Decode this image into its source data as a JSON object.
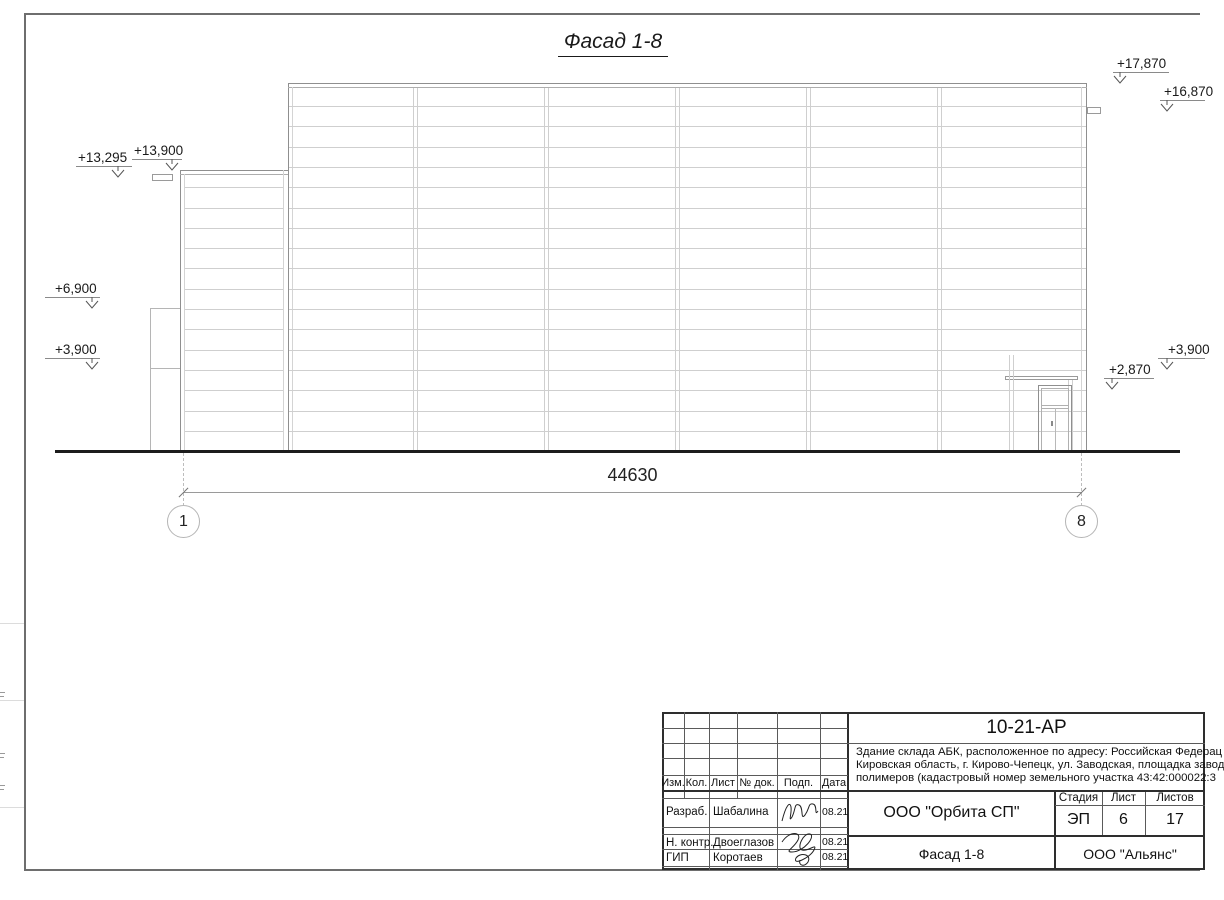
{
  "drawing": {
    "title": "Фасад 1-8",
    "total_dimension": "44630",
    "axis_left": "1",
    "axis_right": "8",
    "marks": {
      "m13295": "+13,295",
      "m13900": "+13,900",
      "m6900": "+6,900",
      "m3900l": "+3,900",
      "m17870": "+17,870",
      "m16870": "+16,870",
      "m3900r": "+3,900",
      "m2870": "+2,870"
    }
  },
  "title_block": {
    "doc_number": "10-21-АР",
    "description": [
      "Здание склада АБК, расположенное по адресу: Российская Федерац",
      "Кировская область, г. Кирово-Чепецк, ул. Заводская, площадка завод",
      "полимеров (кадастровый номер земельного участка 43:42:000022:3"
    ],
    "columns_header": [
      "Изм.",
      "Кол.",
      "Лист",
      "№ док.",
      "Подп.",
      "Дата"
    ],
    "sign_rows": [
      {
        "role": "Разраб.",
        "name": "Шабалина",
        "date": "08.21"
      },
      {
        "role": "Н. контр.",
        "name": "Двоеглазов",
        "date": "08.21"
      },
      {
        "role": "ГИП",
        "name": "Коротаев",
        "date": "08.21"
      }
    ],
    "stage_header": [
      "Стадия",
      "Лист",
      "Листов"
    ],
    "stage_values": [
      "ЭП",
      "6",
      "17"
    ],
    "company": "ООО \"Орбита СП\"",
    "sheet_title": "Фасад 1-8",
    "contractor": "ООО \"Альянс\""
  },
  "colors": {
    "outline": "#8f8f8f",
    "panel_line": "#cfcfcf",
    "ground": "#1c1c1c",
    "stamp_line": "#2e2e2e"
  }
}
